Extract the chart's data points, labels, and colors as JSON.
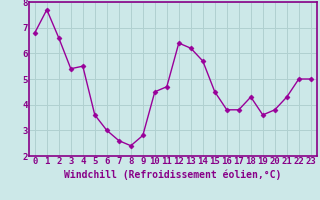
{
  "x": [
    0,
    1,
    2,
    3,
    4,
    5,
    6,
    7,
    8,
    9,
    10,
    11,
    12,
    13,
    14,
    15,
    16,
    17,
    18,
    19,
    20,
    21,
    22,
    23
  ],
  "y": [
    6.8,
    7.7,
    6.6,
    5.4,
    5.5,
    3.6,
    3.0,
    2.6,
    2.4,
    2.8,
    4.5,
    4.7,
    6.4,
    6.2,
    5.7,
    4.5,
    3.8,
    3.8,
    4.3,
    3.6,
    3.8,
    4.3,
    5.0,
    5.0
  ],
  "line_color": "#990099",
  "marker": "D",
  "marker_size": 2.5,
  "bg_color": "#cce8e8",
  "xlabel": "Windchill (Refroidissement éolien,°C)",
  "ylim": [
    2,
    8
  ],
  "xlim": [
    -0.5,
    23.5
  ],
  "yticks": [
    2,
    3,
    4,
    5,
    6,
    7,
    8
  ],
  "xticks": [
    0,
    1,
    2,
    3,
    4,
    5,
    6,
    7,
    8,
    9,
    10,
    11,
    12,
    13,
    14,
    15,
    16,
    17,
    18,
    19,
    20,
    21,
    22,
    23
  ],
  "grid_color": "#b0d0d0",
  "xlabel_fontsize": 7,
  "tick_fontsize": 6.5,
  "label_color": "#880088",
  "spine_color": "#880088",
  "linewidth": 1.0
}
